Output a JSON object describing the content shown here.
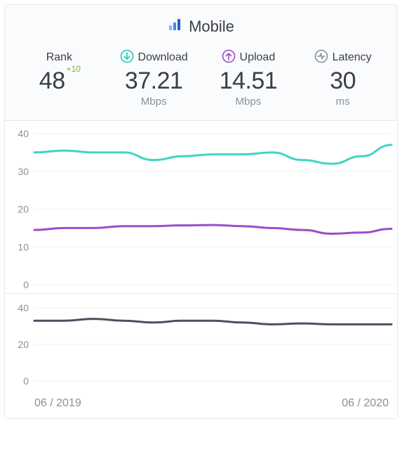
{
  "header": {
    "title": "Mobile",
    "icon_colors": [
      "#3b82f6",
      "#3b82f6",
      "#3b82f6"
    ]
  },
  "metrics": {
    "rank": {
      "label": "Rank",
      "value": "48",
      "delta": "+10"
    },
    "download": {
      "label": "Download",
      "value": "37.21",
      "unit": "Mbps",
      "icon_color": "#27c9b8"
    },
    "upload": {
      "label": "Upload",
      "value": "14.51",
      "unit": "Mbps",
      "icon_color": "#9b4dca"
    },
    "latency": {
      "label": "Latency",
      "value": "30",
      "unit": "ms",
      "icon_color": "#8a9099"
    }
  },
  "chart_top": {
    "type": "line",
    "ylim": [
      0,
      40
    ],
    "yticks": [
      0,
      10,
      20,
      30,
      40
    ],
    "background_color": "#ffffff",
    "grid_color": "#eceff1",
    "line_width": 3,
    "series": [
      {
        "name": "download",
        "color": "#3fd6c4",
        "values": [
          35,
          35.5,
          35,
          35,
          33,
          34,
          34.5,
          34.5,
          35,
          33,
          32,
          34,
          37
        ]
      },
      {
        "name": "upload",
        "color": "#9b4dca",
        "values": [
          14.5,
          15,
          15,
          15.5,
          15.5,
          15.7,
          15.8,
          15.5,
          15,
          14.5,
          13.5,
          13.8,
          14.8
        ]
      }
    ]
  },
  "chart_bottom": {
    "type": "line",
    "ylim": [
      0,
      40
    ],
    "yticks": [
      0,
      20,
      40
    ],
    "background_color": "#ffffff",
    "grid_color": "#eceff1",
    "line_width": 3,
    "series": [
      {
        "name": "latency",
        "color": "#4a5160",
        "values": [
          33,
          33,
          34,
          33,
          32,
          33,
          33,
          32,
          31,
          31.5,
          31,
          31,
          31
        ]
      }
    ]
  },
  "x_axis": {
    "start": "06 / 2019",
    "end": "06 / 2020"
  },
  "colors": {
    "text": "#3b3f45",
    "muted": "#8a9099",
    "delta_positive": "#7cb342",
    "card_bg": "#fafbfc",
    "border": "#e6e8ea"
  }
}
